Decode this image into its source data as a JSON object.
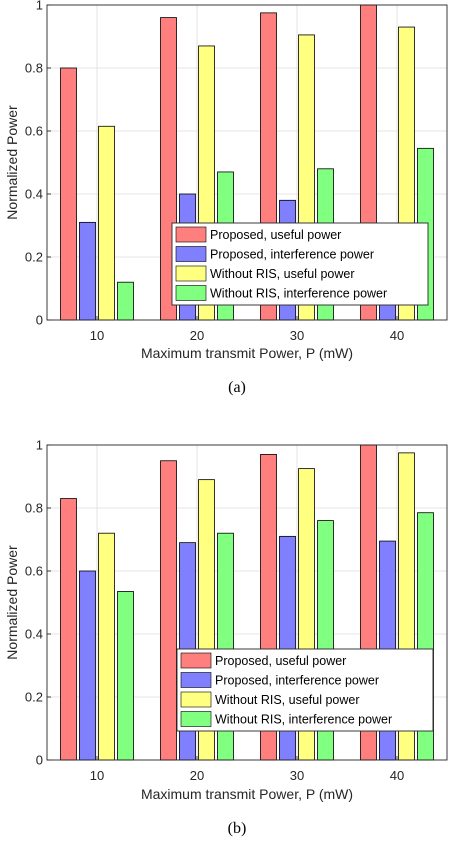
{
  "chart_data": [
    {
      "type": "bar",
      "caption": "(a)",
      "categories": [
        "10",
        "20",
        "30",
        "40"
      ],
      "xlabel": "Maximum transmit Power, P (mW)",
      "ylabel": "Normalized Power",
      "ylim": [
        0,
        1
      ],
      "yticks": [
        "0",
        "0.2",
        "0.4",
        "0.6",
        "0.8",
        "1"
      ],
      "grid": true,
      "legend_position": "bottom-right",
      "series": [
        {
          "name": "Proposed, useful power",
          "color": "#ff7f7f",
          "values": [
            0.8,
            0.96,
            0.975,
            1.0
          ]
        },
        {
          "name": "Proposed, interference power",
          "color": "#8080ff",
          "values": [
            0.31,
            0.4,
            0.38,
            0.305
          ]
        },
        {
          "name": "Without RIS, useful power",
          "color": "#ffff80",
          "values": [
            0.615,
            0.87,
            0.905,
            0.93
          ]
        },
        {
          "name": "Without RIS, interference power",
          "color": "#80ff80",
          "values": [
            0.12,
            0.47,
            0.48,
            0.545
          ]
        }
      ]
    },
    {
      "type": "bar",
      "caption": "(b)",
      "categories": [
        "10",
        "20",
        "30",
        "40"
      ],
      "xlabel": "Maximum transmit Power, P (mW)",
      "ylabel": "Normalized Power",
      "ylim": [
        0,
        1
      ],
      "yticks": [
        "0",
        "0.2",
        "0.4",
        "0.6",
        "0.8",
        "1"
      ],
      "grid": true,
      "legend_position": "bottom-right",
      "series": [
        {
          "name": "Proposed, useful power",
          "color": "#ff7f7f",
          "values": [
            0.83,
            0.95,
            0.97,
            1.0
          ]
        },
        {
          "name": "Proposed, interference power",
          "color": "#8080ff",
          "values": [
            0.6,
            0.69,
            0.71,
            0.695
          ]
        },
        {
          "name": "Without RIS, useful power",
          "color": "#ffff80",
          "values": [
            0.72,
            0.89,
            0.925,
            0.975
          ]
        },
        {
          "name": "Without RIS, interference power",
          "color": "#80ff80",
          "values": [
            0.535,
            0.72,
            0.76,
            0.785
          ]
        }
      ]
    }
  ]
}
